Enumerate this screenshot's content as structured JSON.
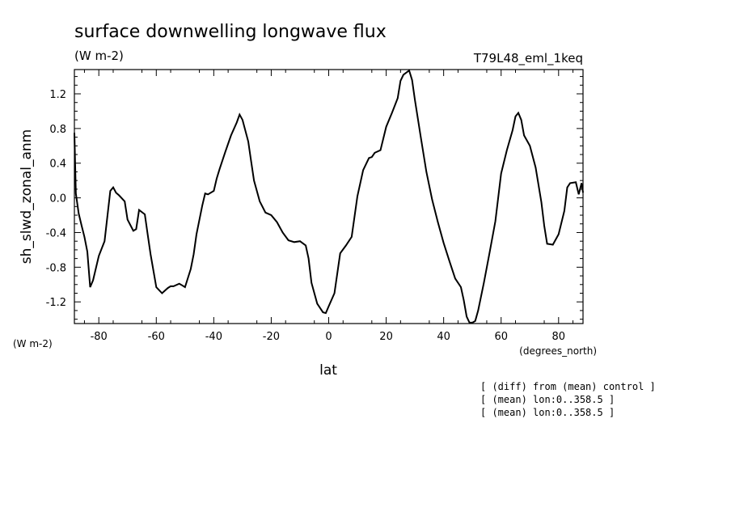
{
  "chart_data": {
    "type": "line",
    "title": "surface downwelling longwave flux",
    "units": "(W m-2)",
    "experiment": "T79L48_eml_1keq",
    "ylabel": "sh_slwd_zonal_anm",
    "ylabel_units": "(W m-2)",
    "xlabel": "lat",
    "xlabel_units": "(degrees_north)",
    "xlim": [
      -88.5,
      88.5
    ],
    "ylim": [
      -1.45,
      1.48
    ],
    "xticks": [
      -80,
      -60,
      -40,
      -20,
      0,
      20,
      40,
      60,
      80
    ],
    "xtick_labels": [
      "-80",
      "-60",
      "-40",
      "-20",
      "0",
      "20",
      "40",
      "60",
      "80"
    ],
    "yticks": [
      -1.2,
      -0.8,
      -0.4,
      0.0,
      0.4,
      0.8,
      1.2
    ],
    "ytick_labels": [
      "-1.2",
      "-0.8",
      "-0.4",
      "0.0",
      "0.4",
      "0.8",
      "1.2"
    ],
    "notes": [
      "[ (diff) from (mean) control ]",
      "[ (mean) lon:0..358.5 ]",
      "[ (mean) lon:0..358.5 ]"
    ],
    "series": [
      {
        "x": [
          -88.5,
          -88,
          -87,
          -86,
          -85,
          -84,
          -83,
          -82,
          -80,
          -78,
          -76,
          -75,
          -74,
          -73,
          -71,
          -70,
          -68,
          -67,
          -66,
          -64,
          -63,
          -62,
          -60,
          -58,
          -56,
          -55,
          -54,
          -52,
          -51,
          -50,
          -48,
          -47,
          -46,
          -44,
          -43,
          -42,
          -40,
          -39,
          -38,
          -36,
          -34,
          -32,
          -31,
          -30,
          -28,
          -27,
          -26,
          -24,
          -22,
          -20,
          -18,
          -16,
          -14,
          -12,
          -10,
          -8,
          -7,
          -6,
          -4,
          -2,
          -1,
          0,
          2,
          4,
          6,
          8,
          10,
          12,
          14,
          15,
          16,
          18,
          20,
          22,
          24,
          25,
          26,
          28,
          29,
          30,
          32,
          34,
          36,
          38,
          40,
          42,
          44,
          46,
          47,
          48,
          49,
          50,
          51,
          52,
          54,
          56,
          58,
          60,
          62,
          64,
          65,
          66,
          67,
          68,
          70,
          72,
          74,
          75,
          76,
          78,
          80,
          82,
          83,
          84,
          86,
          87,
          88,
          88.5
        ],
        "y": [
          0.75,
          0.05,
          -0.18,
          -0.32,
          -0.45,
          -0.62,
          -1.03,
          -0.95,
          -0.67,
          -0.5,
          0.08,
          0.12,
          0.06,
          0.03,
          -0.04,
          -0.25,
          -0.38,
          -0.36,
          -0.14,
          -0.19,
          -0.42,
          -0.65,
          -1.03,
          -1.1,
          -1.04,
          -1.02,
          -1.02,
          -0.99,
          -1.01,
          -1.03,
          -0.82,
          -0.65,
          -0.42,
          -0.09,
          0.05,
          0.04,
          0.08,
          0.22,
          0.33,
          0.53,
          0.72,
          0.87,
          0.96,
          0.9,
          0.65,
          0.42,
          0.2,
          -0.04,
          -0.17,
          -0.2,
          -0.28,
          -0.4,
          -0.49,
          -0.51,
          -0.5,
          -0.55,
          -0.7,
          -0.98,
          -1.22,
          -1.32,
          -1.33,
          -1.25,
          -1.1,
          -0.64,
          -0.55,
          -0.45,
          0.02,
          0.32,
          0.46,
          0.47,
          0.52,
          0.55,
          0.82,
          0.98,
          1.15,
          1.35,
          1.42,
          1.47,
          1.36,
          1.13,
          0.71,
          0.3,
          -0.02,
          -0.28,
          -0.52,
          -0.73,
          -0.93,
          -1.03,
          -1.18,
          -1.37,
          -1.44,
          -1.44,
          -1.42,
          -1.3,
          -0.98,
          -0.63,
          -0.27,
          0.28,
          0.55,
          0.78,
          0.94,
          0.98,
          0.9,
          0.72,
          0.6,
          0.35,
          -0.05,
          -0.32,
          -0.53,
          -0.54,
          -0.42,
          -0.15,
          0.12,
          0.17,
          0.18,
          0.04,
          0.17,
          0.06
        ]
      }
    ]
  }
}
